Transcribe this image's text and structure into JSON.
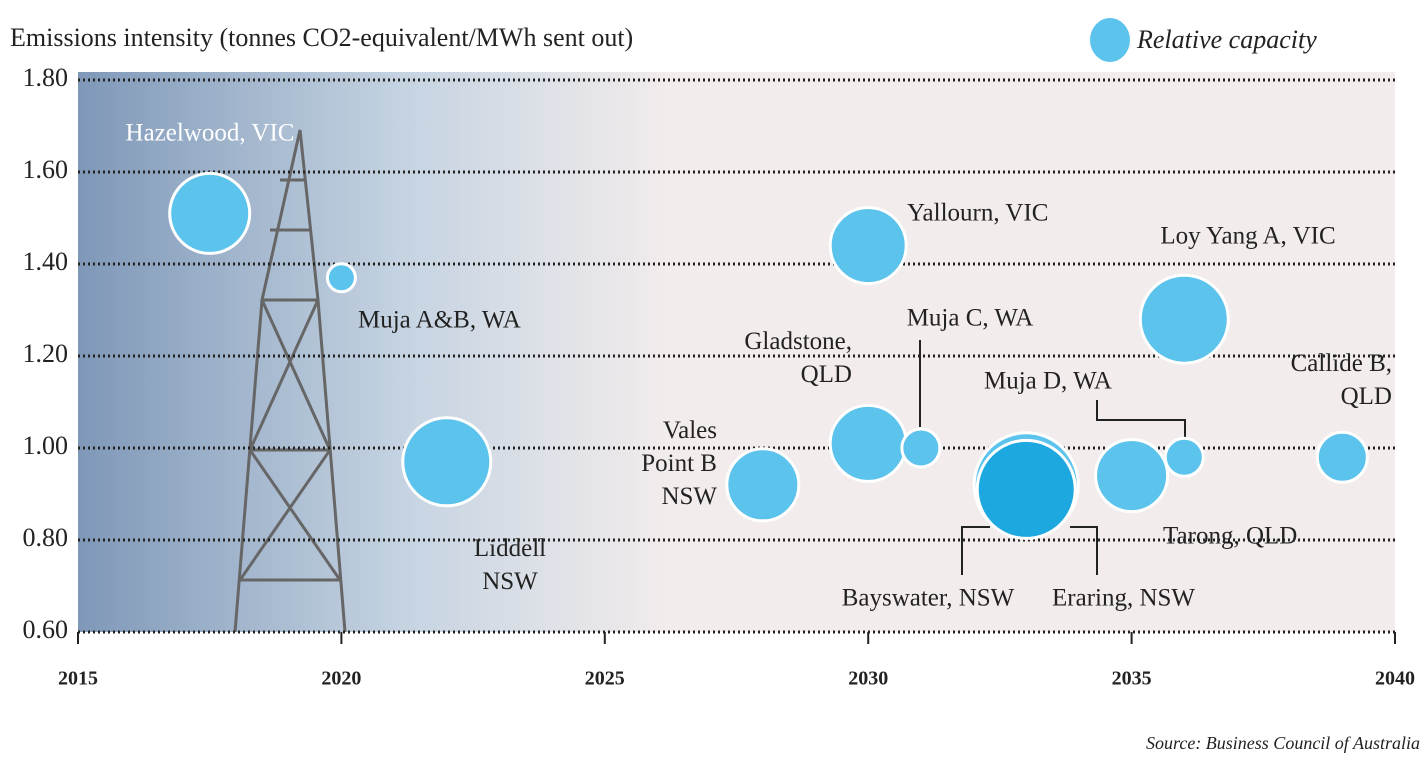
{
  "chart_data": {
    "type": "bubble",
    "title": "Emissions intensity (tonnes CO2-equivalent/MWh sent out)",
    "legend": "Relative capacity",
    "source": "Source: Business Council of Australia",
    "xlim": [
      2015,
      2040
    ],
    "xticks": [
      2015,
      2020,
      2025,
      2030,
      2035,
      2040
    ],
    "ylim": [
      0.6,
      1.8
    ],
    "yticks": [
      {
        "value": 0.6,
        "label": "0.60"
      },
      {
        "value": 0.8,
        "label": "0.80"
      },
      {
        "value": 1.0,
        "label": "1.00"
      },
      {
        "value": 1.2,
        "label": "1.20"
      },
      {
        "value": 1.4,
        "label": "1.40"
      },
      {
        "value": 1.6,
        "label": "1.60"
      },
      {
        "value": 1.8,
        "label": "1.80"
      }
    ],
    "grid": true,
    "color": "#5cc3ec",
    "points": [
      {
        "label": "Hazelwood, VIC",
        "x": 2017.5,
        "y": 1.51,
        "size": 40,
        "color": "#5cc3ec"
      },
      {
        "label": "Muja A&B, WA",
        "x": 2020,
        "y": 1.37,
        "size": 14,
        "color": "#5cc3ec"
      },
      {
        "label": "Liddell\nNSW",
        "x": 2022,
        "y": 0.97,
        "size": 44,
        "color": "#5cc3ec"
      },
      {
        "label": "Vales\nPoint B\nNSW",
        "x": 2028,
        "y": 0.92,
        "size": 36,
        "color": "#5cc3ec"
      },
      {
        "label": "Gladstone,\nQLD",
        "x": 2030,
        "y": 1.01,
        "size": 38,
        "color": "#5cc3ec"
      },
      {
        "label": "Yallourn, VIC",
        "x": 2030,
        "y": 1.44,
        "size": 38,
        "color": "#5cc3ec"
      },
      {
        "label": "Muja C, WA",
        "x": 2031,
        "y": 1.0,
        "size": 19,
        "color": "#5cc3ec"
      },
      {
        "label": "Bayswater, NSW",
        "x": 2033,
        "y": 0.92,
        "size": 52,
        "color": "#5cc3ec"
      },
      {
        "label": "Eraring, NSW",
        "x": 2033,
        "y": 0.91,
        "size": 49,
        "color": "#1ea8e0"
      },
      {
        "label": "Tarong, QLD",
        "x": 2035,
        "y": 0.94,
        "size": 36,
        "color": "#5cc3ec"
      },
      {
        "label": "Loy Yang A, VIC",
        "x": 2036,
        "y": 1.28,
        "size": 44,
        "color": "#5cc3ec"
      },
      {
        "label": "Muja D, WA",
        "x": 2036,
        "y": 0.98,
        "size": 19,
        "color": "#5cc3ec"
      },
      {
        "label": "Callide B,\nQLD",
        "x": 2039,
        "y": 0.98,
        "size": 25,
        "color": "#5cc3ec"
      }
    ]
  }
}
